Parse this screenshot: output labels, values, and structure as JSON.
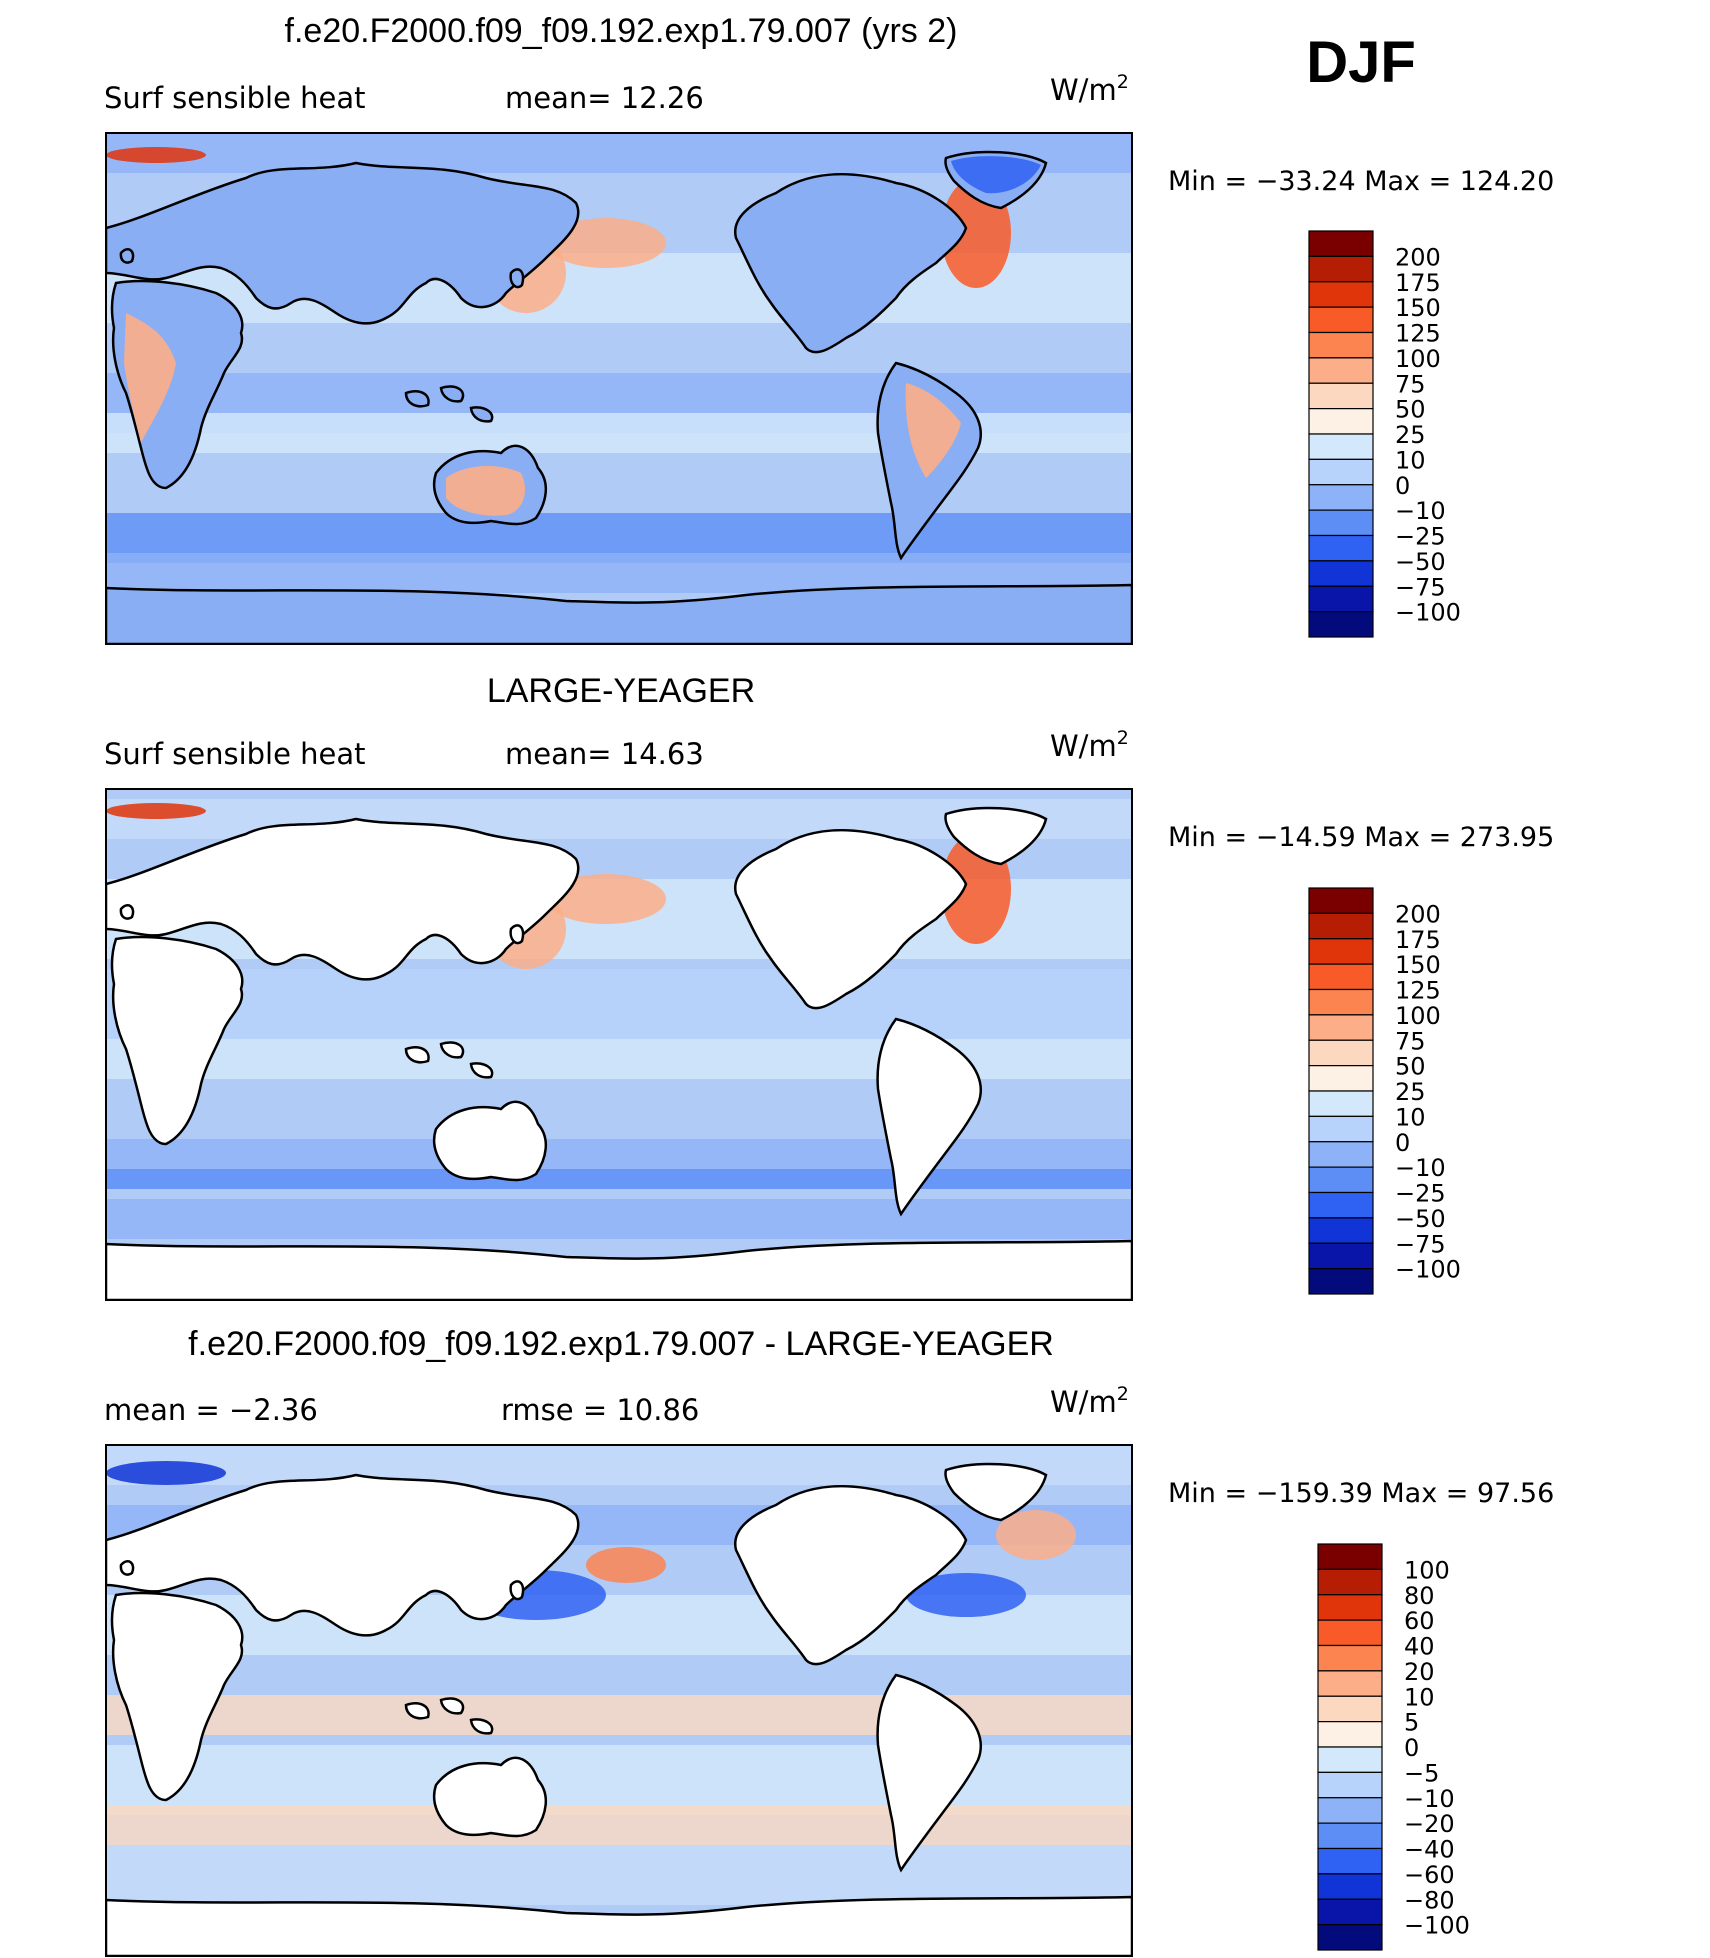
{
  "season": "DJF",
  "panels": [
    {
      "title": "f.e20.F2000.f09_f09.192.exp1.79.007 (yrs 2)",
      "left_label": "Surf  sensible  heat",
      "center_label": "mean=   12.26",
      "units": "W/m",
      "units_sup": "2",
      "minmax": "Min  =  −33.24  Max  =  124.20",
      "colorbar_labels": [
        "200",
        "175",
        "150",
        "125",
        "100",
        "75",
        "50",
        "25",
        "10",
        "0",
        "−10",
        "−25",
        "−50",
        "−75",
        "−100"
      ]
    },
    {
      "title": "LARGE-YEAGER",
      "left_label": "Surf  sensible  heat",
      "center_label": "mean=   14.63",
      "units": "W/m",
      "units_sup": "2",
      "minmax": "Min  =  −14.59  Max  =  273.95",
      "colorbar_labels": [
        "200",
        "175",
        "150",
        "125",
        "100",
        "75",
        "50",
        "25",
        "10",
        "0",
        "−10",
        "−25",
        "−50",
        "−75",
        "−100"
      ]
    },
    {
      "title": "f.e20.F2000.f09_f09.192.exp1.79.007 - LARGE-YEAGER",
      "left_label": "mean  =     −2.36",
      "center_label": "rmse  =     10.86",
      "units": "W/m",
      "units_sup": "2",
      "minmax": "Min  =  −159.39  Max  =    97.56",
      "colorbar_labels": [
        "100",
        "80",
        "60",
        "40",
        "20",
        "10",
        "5",
        "0",
        "−5",
        "−10",
        "−20",
        "−40",
        "−60",
        "−80",
        "−100"
      ]
    }
  ],
  "colors": {
    "field_colorbar": [
      "#7a0000",
      "#b51e05",
      "#e0340a",
      "#f85a28",
      "#fb8450",
      "#fcae88",
      "#fdd8c0",
      "#fdf0e4",
      "#d4e8fb",
      "#b8d3fb",
      "#8eb2f8",
      "#5c8ef6",
      "#2f62f2",
      "#1034d6",
      "#0815a8",
      "#030a7c"
    ],
    "diff_colorbar": [
      "#7a0000",
      "#b51e05",
      "#e0340a",
      "#f85a28",
      "#fb8450",
      "#fcae88",
      "#fdd8c0",
      "#fdf0e4",
      "#d4e8fb",
      "#b8d3fb",
      "#8eb2f8",
      "#5c8ef6",
      "#2f62f2",
      "#1034d6",
      "#0815a8",
      "#030a7c"
    ],
    "ocean_base": "#b0ccf6",
    "land_top": "#8aaef4"
  }
}
